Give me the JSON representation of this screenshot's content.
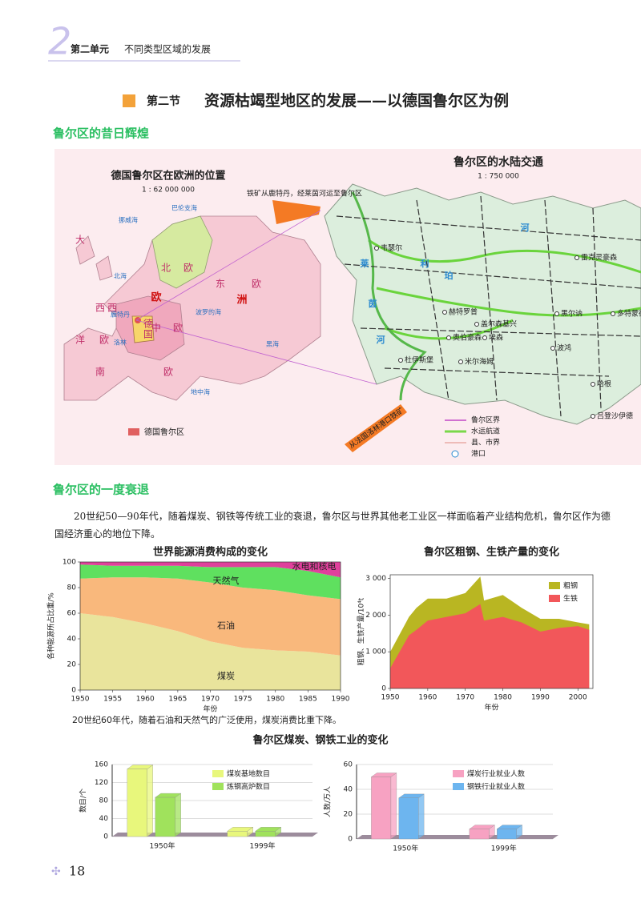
{
  "header": {
    "unit_number": "2",
    "unit": "第二单元",
    "unit_title": "不同类型区域的发展"
  },
  "section": {
    "number": "第二节",
    "title": "资源枯竭型地区的发展——以德国鲁尔区为例"
  },
  "headings": [
    "鲁尔区的昔日辉煌",
    "鲁尔区的一度衰退"
  ],
  "maps": {
    "left": {
      "title": "德国鲁尔区在欧洲的位置",
      "scale": "1 : 62 000 000",
      "labels": [
        "大",
        "西",
        "洋",
        "北",
        "欧",
        "东",
        "欧",
        "欧",
        "洲",
        "西",
        "欧",
        "中",
        "欧",
        "南",
        "欧",
        "德",
        "国",
        "鹿特丹",
        "洛林",
        "巴伦支海",
        "挪威海",
        "北海",
        "波罗的海",
        "黑海",
        "地中海"
      ],
      "legend": "德国鲁尔区"
    },
    "arrow_notes": [
      "铁矿从鹿特丹，经莱茵河运至鲁尔区",
      "从法国洛林港口铁矿"
    ],
    "right": {
      "title": "鲁尔区的水陆交通",
      "scale": "1 : 750 000",
      "labels": [
        "莱",
        "茵",
        "河",
        "利",
        "珀",
        "河",
        "韦瑟尔",
        "雷克灵豪森",
        "赫特罗普",
        "盖尔森基兴",
        "黑尔讷",
        "多特蒙德",
        "奥伯豪森",
        "杜伊斯堡",
        "米尔海姆",
        "埃森",
        "波鸿",
        "哈根",
        "吕登沙伊德"
      ],
      "legend": [
        "鲁尔区界",
        "水运航道",
        "县、市界",
        "港口"
      ]
    }
  },
  "paragraph": "20世纪50—90年代，随着煤炭、钢铁等传统工业的衰退，鲁尔区与世界其他老工业区一样面临着产业结构危机，鲁尔区作为德国经济重心的地位下降。",
  "caption": "20世纪60年代，随着石油和天然气的广泛使用，煤炭消费比重下降。",
  "page_number": "18",
  "chart_data": [
    {
      "type": "area",
      "stacked": true,
      "title": "世界能源消费构成的变化",
      "x_label": "年份",
      "y_label": "各种能源所占比重/%",
      "x": [
        1950,
        1955,
        1960,
        1965,
        1970,
        1975,
        1980,
        1985,
        1990
      ],
      "xlim": [
        1950,
        1990
      ],
      "xticks": [
        1950,
        1955,
        1960,
        1965,
        1970,
        1975,
        1980,
        1985,
        1990
      ],
      "ylim": [
        0,
        100
      ],
      "yticks": [
        0,
        20,
        40,
        60,
        80,
        100
      ],
      "series": [
        {
          "name": "煤炭",
          "color": "#e9e49c",
          "values": [
            60,
            57,
            52,
            46,
            38,
            33,
            31,
            30,
            27
          ]
        },
        {
          "name": "石油",
          "color": "#f9b87c",
          "values": [
            27,
            31,
            36,
            41,
            46,
            47,
            47,
            44,
            44
          ]
        },
        {
          "name": "天然气",
          "color": "#5fe05f",
          "values": [
            11,
            9,
            9,
            10,
            12,
            16,
            18,
            19,
            17
          ]
        },
        {
          "name": "水电和核电",
          "color": "#e0409c",
          "values": [
            2,
            3,
            3,
            3,
            4,
            4,
            4,
            7,
            12
          ]
        }
      ]
    },
    {
      "type": "area",
      "stacked": false,
      "title": "鲁尔区粗钢、生铁产量的变化",
      "x_label": "年份",
      "y_label": "粗钢、生铁产量/10⁴t",
      "legend": "top-right",
      "x": [
        1950,
        1955,
        1957,
        1960,
        1965,
        1970,
        1974,
        1975,
        1980,
        1985,
        1990,
        1995,
        2000,
        2003
      ],
      "xlim": [
        1950,
        2004
      ],
      "xticks": [
        1950,
        1960,
        1970,
        1980,
        1990,
        2000
      ],
      "ylim": [
        0,
        3100
      ],
      "yticks": [
        0,
        {
          "value": 1000,
          "label": "1 000"
        },
        {
          "value": 2000,
          "label": "2 000"
        },
        {
          "value": 3000,
          "label": "3 000"
        }
      ],
      "series": [
        {
          "name": "粗钢",
          "color": "#b9b622",
          "values": [
            1000,
            1950,
            2200,
            2450,
            2450,
            2600,
            3050,
            2400,
            2550,
            2200,
            1900,
            1900,
            1800,
            1750
          ]
        },
        {
          "name": "生铁",
          "color": "#f2575a",
          "values": [
            550,
            1450,
            1600,
            1850,
            1950,
            2050,
            2300,
            1850,
            1950,
            1800,
            1550,
            1650,
            1700,
            1600
          ]
        }
      ]
    },
    {
      "type": "bar",
      "title": "鲁尔区煤炭、钢铁工业的变化",
      "y_label": "数目/个",
      "legend": "top-right",
      "categories": [
        "1950年",
        "1999年"
      ],
      "ylim": [
        0,
        160
      ],
      "yticks": [
        0,
        40,
        80,
        120,
        160
      ],
      "series": [
        {
          "name": "煤炭基地数目",
          "color": "#e8f77c",
          "values": [
            150,
            12
          ]
        },
        {
          "name": "炼钢高炉数目",
          "color": "#a0e25c",
          "values": [
            87,
            12
          ]
        }
      ]
    },
    {
      "type": "bar",
      "y_label": "人数/万人",
      "legend": "top-right",
      "categories": [
        "1950年",
        "1999年"
      ],
      "ylim": [
        0,
        60
      ],
      "yticks": [
        0,
        20,
        40,
        60
      ],
      "series": [
        {
          "name": "煤炭行业就业人数",
          "color": "#f7a2c2",
          "values": [
            50,
            8
          ]
        },
        {
          "name": "钢铁行业就业人数",
          "color": "#6db5ef",
          "values": [
            33,
            8
          ]
        }
      ]
    }
  ]
}
